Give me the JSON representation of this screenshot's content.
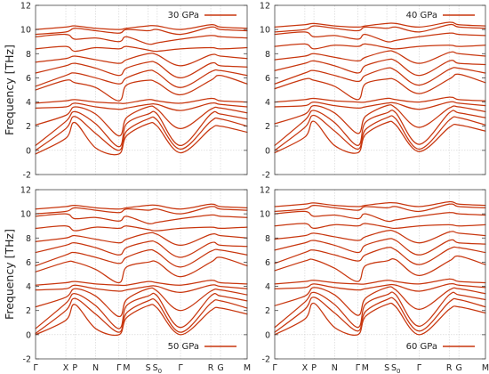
{
  "chart_data": [
    {
      "type": "line",
      "legend": "30 GPa",
      "legend_position": "top-right",
      "ylabel": "Frequency [THz]",
      "ylim": [
        -2,
        12
      ],
      "yticks": [
        "-2",
        "0",
        "2",
        "4",
        "6",
        "8",
        "10",
        "12"
      ],
      "kpoints": [
        "Γ",
        "X",
        "P",
        "N",
        "Γ",
        "M",
        "S",
        "S0",
        "Γ",
        "R",
        "G",
        "M"
      ],
      "kpoint_labels_shown": false,
      "series_color": "#c8360e",
      "bands": [
        [
          -0.3,
          1.0,
          2.3,
          0.2,
          -0.3,
          1.2,
          2.2,
          2.0,
          -0.2,
          1.8,
          2.0,
          1.5
        ],
        [
          0.0,
          1.8,
          2.8,
          1.4,
          0.0,
          1.6,
          2.6,
          2.5,
          0.1,
          2.4,
          2.6,
          2.0
        ],
        [
          0.4,
          2.4,
          3.2,
          2.2,
          0.3,
          2.2,
          3.0,
          3.0,
          0.4,
          3.0,
          3.0,
          2.6
        ],
        [
          2.1,
          2.9,
          3.6,
          3.0,
          1.2,
          2.7,
          3.6,
          3.4,
          1.8,
          3.4,
          3.5,
          3.1
        ],
        [
          3.5,
          3.6,
          3.9,
          3.6,
          3.4,
          3.5,
          3.8,
          3.8,
          3.3,
          3.9,
          3.8,
          3.6
        ],
        [
          3.9,
          4.1,
          4.2,
          4.0,
          3.9,
          3.9,
          4.2,
          4.1,
          3.9,
          4.3,
          4.1,
          4.0
        ],
        [
          5.0,
          5.8,
          5.6,
          5.2,
          4.1,
          5.4,
          5.8,
          5.6,
          4.6,
          5.8,
          6.2,
          5.5
        ],
        [
          5.3,
          6.2,
          6.4,
          6.0,
          5.5,
          6.0,
          6.6,
          6.4,
          5.2,
          6.5,
          6.6,
          6.2
        ],
        [
          6.4,
          7.0,
          7.2,
          6.8,
          6.2,
          6.8,
          7.3,
          7.2,
          6.0,
          7.2,
          7.0,
          6.9
        ],
        [
          7.3,
          7.6,
          7.8,
          7.5,
          7.2,
          7.5,
          8.0,
          7.9,
          7.0,
          7.9,
          7.8,
          7.6
        ],
        [
          8.4,
          8.6,
          8.2,
          8.5,
          8.4,
          8.6,
          8.3,
          8.2,
          8.4,
          8.5,
          8.4,
          8.5
        ],
        [
          9.4,
          9.6,
          9.2,
          9.3,
          9.0,
          9.4,
          8.8,
          8.9,
          9.2,
          9.5,
          9.4,
          9.3
        ],
        [
          9.6,
          9.8,
          10.1,
          9.9,
          9.7,
          10.0,
          9.9,
          10.0,
          9.6,
          10.2,
          10.0,
          9.9
        ],
        [
          10.0,
          10.2,
          10.3,
          10.1,
          10.0,
          10.1,
          10.3,
          10.3,
          10.0,
          10.4,
          10.2,
          10.1
        ]
      ]
    },
    {
      "type": "line",
      "legend": "40 GPa",
      "legend_position": "top-right",
      "ylim": [
        -2,
        12
      ],
      "yticks": [
        "-2",
        "0",
        "2",
        "4",
        "6",
        "8",
        "10",
        "12"
      ],
      "kpoints": [
        "Γ",
        "X",
        "P",
        "N",
        "Γ",
        "M",
        "S",
        "S0",
        "Γ",
        "R",
        "G",
        "M"
      ],
      "kpoint_labels_shown": false,
      "series_color": "#c8360e",
      "bands": [
        [
          -0.2,
          1.1,
          2.4,
          0.4,
          -0.2,
          1.3,
          2.3,
          2.1,
          -0.1,
          1.9,
          2.1,
          1.6
        ],
        [
          0.0,
          1.9,
          2.9,
          1.6,
          0.1,
          1.7,
          2.7,
          2.6,
          0.1,
          2.5,
          2.7,
          2.1
        ],
        [
          0.4,
          2.5,
          3.3,
          2.3,
          0.4,
          2.3,
          3.1,
          3.1,
          0.5,
          3.1,
          3.1,
          2.7
        ],
        [
          2.2,
          3.0,
          3.7,
          3.1,
          1.4,
          2.8,
          3.7,
          3.5,
          1.9,
          3.5,
          3.6,
          3.2
        ],
        [
          3.6,
          3.7,
          4.0,
          3.7,
          3.5,
          3.6,
          3.9,
          3.9,
          3.4,
          4.0,
          3.9,
          3.7
        ],
        [
          4.0,
          4.2,
          4.3,
          4.1,
          4.0,
          4.0,
          4.3,
          4.2,
          4.0,
          4.4,
          4.2,
          4.1
        ],
        [
          5.1,
          5.9,
          5.8,
          5.3,
          4.2,
          5.5,
          5.9,
          5.8,
          4.7,
          5.9,
          6.3,
          5.6
        ],
        [
          5.5,
          6.4,
          6.6,
          6.2,
          5.7,
          6.2,
          6.8,
          6.6,
          5.4,
          6.7,
          6.8,
          6.4
        ],
        [
          6.6,
          7.2,
          7.4,
          7.0,
          6.4,
          7.0,
          7.5,
          7.4,
          6.2,
          7.4,
          7.2,
          7.1
        ],
        [
          7.5,
          7.8,
          8.0,
          7.7,
          7.4,
          7.7,
          8.2,
          8.1,
          7.2,
          8.1,
          8.0,
          7.8
        ],
        [
          8.6,
          8.8,
          8.4,
          8.7,
          8.6,
          8.8,
          8.5,
          8.4,
          8.6,
          8.7,
          8.6,
          8.7
        ],
        [
          9.6,
          9.8,
          9.4,
          9.5,
          9.2,
          9.6,
          9.0,
          9.1,
          9.4,
          9.7,
          9.6,
          9.5
        ],
        [
          9.8,
          10.0,
          10.3,
          10.1,
          9.9,
          10.2,
          10.1,
          10.2,
          9.8,
          10.4,
          10.2,
          10.1
        ],
        [
          10.2,
          10.4,
          10.5,
          10.3,
          10.2,
          10.3,
          10.5,
          10.5,
          10.2,
          10.6,
          10.4,
          10.3
        ]
      ]
    },
    {
      "type": "line",
      "legend": "50 GPa",
      "legend_position": "bottom-right",
      "ylabel": "Frequency [THz]",
      "ylim": [
        -2,
        12
      ],
      "yticks": [
        "-2",
        "0",
        "2",
        "4",
        "6",
        "8",
        "10",
        "12"
      ],
      "kpoints": [
        "Γ",
        "X",
        "P",
        "N",
        "Γ",
        "M",
        "S",
        "S0",
        "Γ",
        "R",
        "G",
        "M"
      ],
      "kpoint_labels_shown": true,
      "series_color": "#c8360e",
      "bands": [
        [
          0.0,
          1.2,
          2.5,
          0.5,
          0.0,
          1.4,
          2.4,
          2.2,
          0.0,
          2.0,
          2.2,
          1.7
        ],
        [
          0.1,
          2.0,
          3.0,
          1.7,
          0.2,
          1.8,
          2.8,
          2.7,
          0.2,
          2.6,
          2.8,
          2.2
        ],
        [
          0.5,
          2.6,
          3.4,
          2.4,
          0.5,
          2.4,
          3.2,
          3.2,
          0.6,
          3.2,
          3.2,
          2.8
        ],
        [
          2.3,
          3.1,
          3.8,
          3.2,
          1.5,
          2.9,
          3.8,
          3.6,
          2.0,
          3.6,
          3.7,
          3.3
        ],
        [
          3.7,
          3.8,
          4.1,
          3.8,
          3.6,
          3.7,
          4.0,
          4.0,
          3.5,
          4.1,
          4.0,
          3.8
        ],
        [
          4.1,
          4.3,
          4.4,
          4.2,
          4.1,
          4.1,
          4.4,
          4.3,
          4.1,
          4.5,
          4.3,
          4.2
        ],
        [
          5.2,
          6.0,
          6.0,
          5.4,
          4.3,
          5.6,
          6.0,
          6.0,
          4.8,
          6.0,
          6.4,
          5.7
        ],
        [
          5.7,
          6.6,
          6.8,
          6.4,
          5.9,
          6.4,
          7.0,
          6.8,
          5.6,
          6.9,
          7.0,
          6.6
        ],
        [
          6.8,
          7.4,
          7.6,
          7.2,
          6.6,
          7.2,
          7.7,
          7.6,
          6.4,
          7.6,
          7.4,
          7.3
        ],
        [
          7.7,
          8.0,
          8.2,
          7.9,
          7.6,
          7.9,
          8.4,
          8.3,
          7.4,
          8.3,
          8.2,
          8.0
        ],
        [
          8.8,
          9.0,
          8.6,
          8.9,
          8.8,
          9.0,
          8.7,
          8.6,
          8.8,
          8.9,
          8.8,
          8.9
        ],
        [
          9.8,
          10.0,
          9.6,
          9.7,
          9.4,
          9.8,
          9.2,
          9.3,
          9.6,
          9.9,
          9.8,
          9.7
        ],
        [
          10.0,
          10.2,
          10.5,
          10.3,
          10.1,
          10.4,
          10.3,
          10.4,
          10.0,
          10.6,
          10.4,
          10.3
        ],
        [
          10.4,
          10.6,
          10.7,
          10.5,
          10.4,
          10.5,
          10.7,
          10.7,
          10.4,
          10.8,
          10.6,
          10.5
        ]
      ]
    },
    {
      "type": "line",
      "legend": "60 GPa",
      "legend_position": "bottom-right",
      "ylim": [
        -2,
        12
      ],
      "yticks": [
        "-2",
        "0",
        "2",
        "4",
        "6",
        "8",
        "10",
        "12"
      ],
      "kpoints": [
        "Γ",
        "X",
        "P",
        "N",
        "Γ",
        "M",
        "S",
        "S0",
        "Γ",
        "R",
        "G",
        "M"
      ],
      "kpoint_labels_shown": true,
      "series_color": "#c8360e",
      "bands": [
        [
          0.0,
          1.3,
          2.6,
          0.6,
          0.0,
          1.5,
          2.5,
          2.3,
          0.0,
          2.1,
          2.3,
          1.8
        ],
        [
          0.2,
          2.1,
          3.1,
          1.8,
          0.3,
          1.9,
          2.9,
          2.8,
          0.3,
          2.7,
          2.9,
          2.3
        ],
        [
          0.6,
          2.7,
          3.5,
          2.5,
          0.6,
          2.5,
          3.3,
          3.3,
          0.7,
          3.3,
          3.3,
          2.9
        ],
        [
          2.4,
          3.2,
          3.9,
          3.3,
          1.6,
          3.0,
          3.9,
          3.7,
          2.1,
          3.7,
          3.8,
          3.4
        ],
        [
          3.8,
          3.9,
          4.2,
          3.9,
          3.7,
          3.8,
          4.1,
          4.1,
          3.6,
          4.2,
          4.1,
          3.9
        ],
        [
          4.2,
          4.4,
          4.5,
          4.3,
          4.2,
          4.2,
          4.5,
          4.4,
          4.2,
          4.6,
          4.4,
          4.3
        ],
        [
          5.3,
          6.1,
          6.2,
          5.5,
          4.4,
          5.7,
          6.1,
          6.2,
          4.9,
          6.1,
          6.5,
          5.8
        ],
        [
          5.9,
          6.8,
          7.0,
          6.6,
          6.1,
          6.6,
          7.2,
          7.0,
          5.8,
          7.1,
          7.2,
          6.8
        ],
        [
          7.0,
          7.6,
          7.8,
          7.4,
          6.8,
          7.4,
          7.9,
          7.8,
          6.6,
          7.8,
          7.6,
          7.5
        ],
        [
          7.9,
          8.2,
          8.4,
          8.1,
          7.8,
          8.1,
          8.6,
          8.5,
          7.6,
          8.5,
          8.4,
          8.2
        ],
        [
          9.0,
          9.2,
          8.8,
          9.1,
          9.0,
          9.2,
          8.9,
          8.8,
          9.0,
          9.1,
          9.0,
          9.1
        ],
        [
          10.0,
          10.2,
          9.8,
          9.9,
          9.6,
          10.0,
          9.4,
          9.5,
          9.8,
          10.1,
          10.0,
          9.9
        ],
        [
          10.2,
          10.4,
          10.7,
          10.5,
          10.3,
          10.6,
          10.5,
          10.6,
          10.2,
          10.8,
          10.6,
          10.5
        ],
        [
          10.6,
          10.8,
          10.9,
          10.7,
          10.6,
          10.7,
          10.9,
          10.9,
          10.6,
          11.0,
          10.8,
          10.7
        ]
      ]
    }
  ]
}
